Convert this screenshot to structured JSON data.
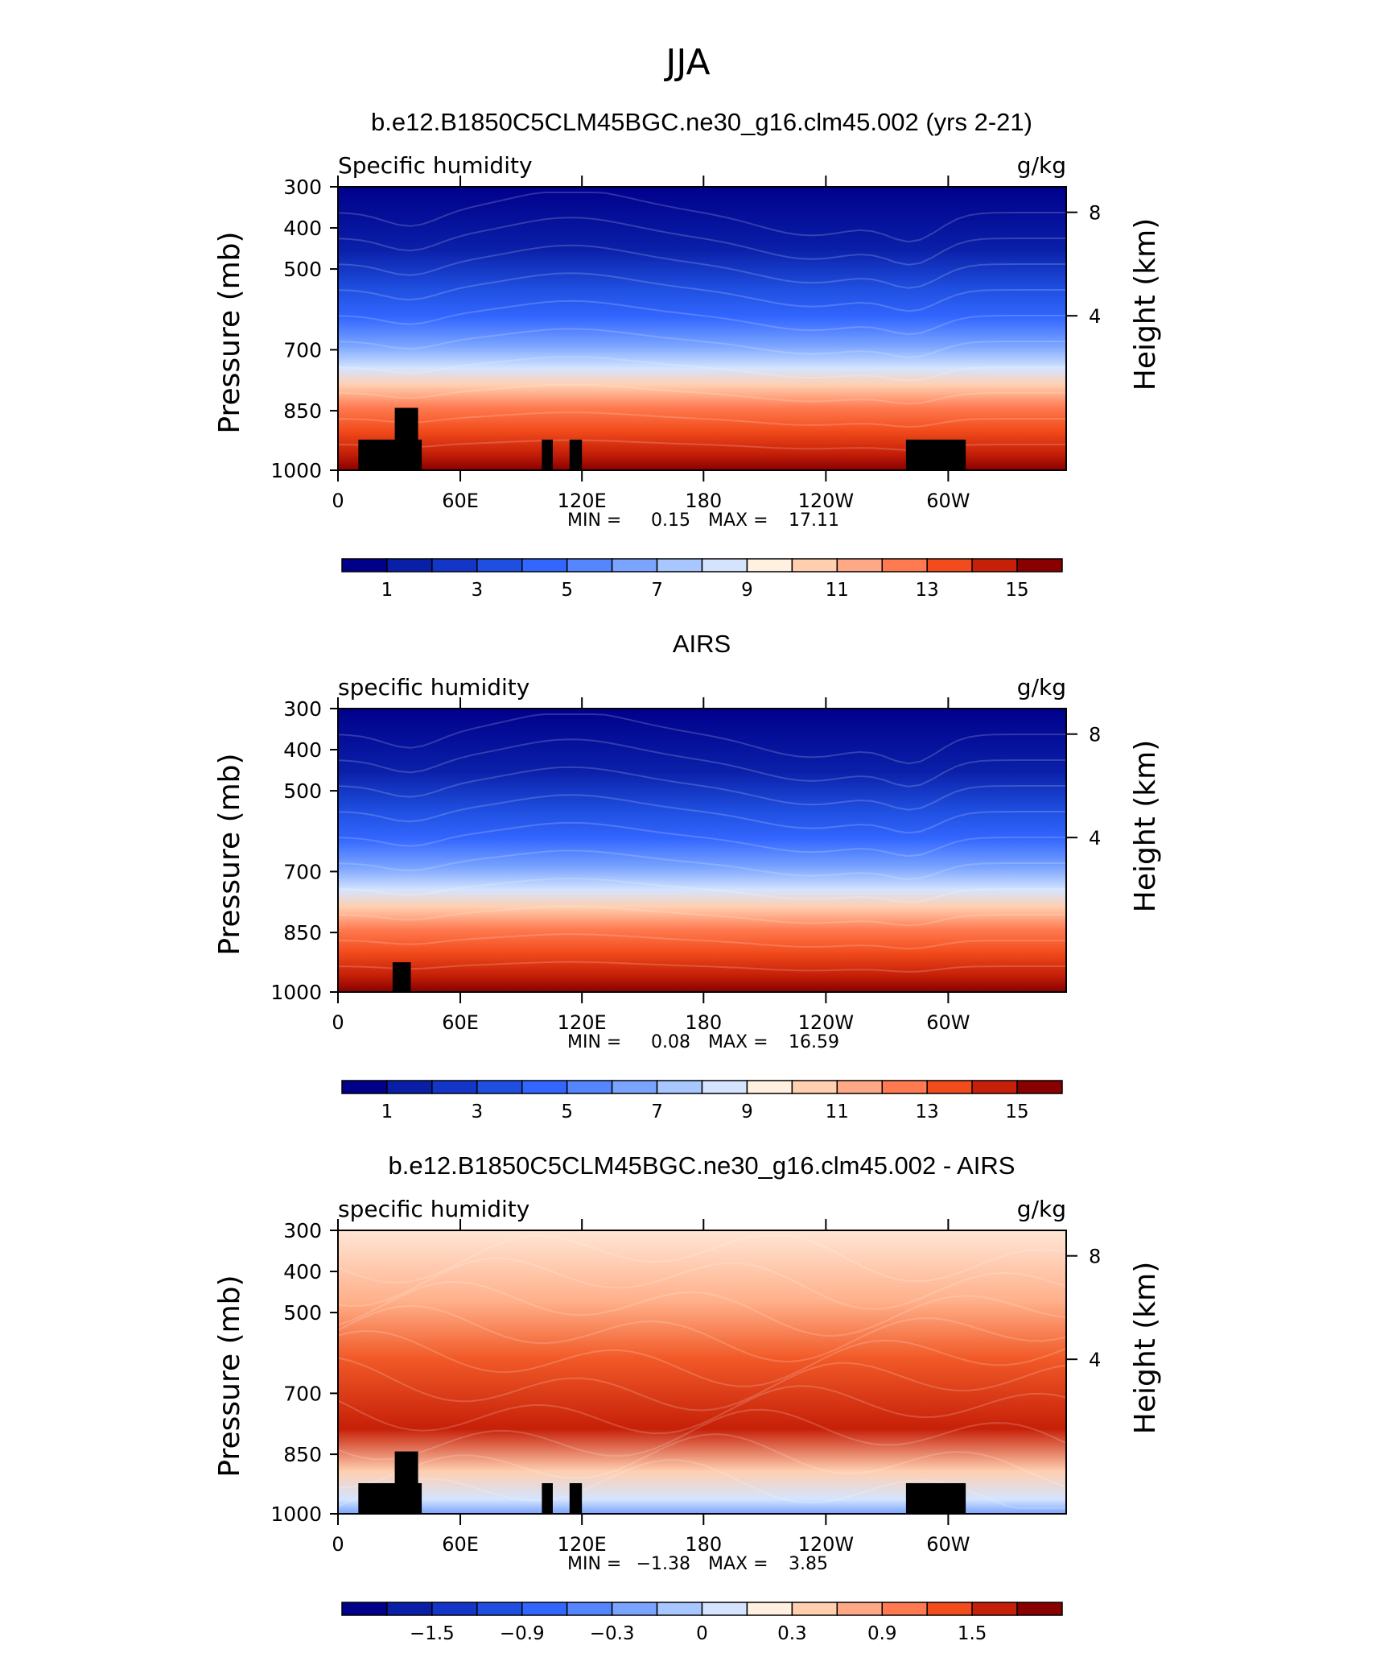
{
  "page": {
    "season_title": "JJA"
  },
  "colors": {
    "blue_to_red_16": [
      "#00008b",
      "#0a1fa8",
      "#1336c8",
      "#1f4fe0",
      "#3366ff",
      "#5585ff",
      "#7aa4ff",
      "#a8c6ff",
      "#d4e4ff",
      "#fff0e0",
      "#ffcfb0",
      "#ffa886",
      "#ff7a50",
      "#f24c1c",
      "#c62008",
      "#880000"
    ],
    "land": "#000000",
    "axis": "#000000"
  },
  "chart_data": [
    {
      "id": "model",
      "type": "heatmap",
      "title": "b.e12.B1850C5CLM45BGC.ne30_g16.clm45.002 (yrs 2-21)",
      "left_label": "Specific humidity",
      "right_label": "g/kg",
      "ylabel": "Pressure (mb)",
      "ylabel_right": "Height (km)",
      "yticks": [
        "300",
        "400",
        "500",
        "700",
        "850",
        "1000"
      ],
      "yticks_right": [
        "8",
        "4"
      ],
      "xticks": [
        "0",
        "60E",
        "120E",
        "180",
        "120W",
        "60W"
      ],
      "min_max": {
        "min_label": "MIN =",
        "min": "0.15",
        "max_label": "MAX =",
        "max": "17.11"
      },
      "colorbar_labels": [
        "1",
        "3",
        "5",
        "7",
        "9",
        "11",
        "13",
        "15"
      ],
      "value_range": [
        0.15,
        17.11
      ]
    },
    {
      "id": "obs",
      "type": "heatmap",
      "title": "AIRS",
      "left_label": "specific humidity",
      "right_label": "g/kg",
      "ylabel": "Pressure (mb)",
      "ylabel_right": "Height (km)",
      "yticks": [
        "300",
        "400",
        "500",
        "700",
        "850",
        "1000"
      ],
      "yticks_right": [
        "8",
        "4"
      ],
      "xticks": [
        "0",
        "60E",
        "120E",
        "180",
        "120W",
        "60W"
      ],
      "min_max": {
        "min_label": "MIN =",
        "min": "0.08",
        "max_label": "MAX =",
        "max": "16.59"
      },
      "colorbar_labels": [
        "1",
        "3",
        "5",
        "7",
        "9",
        "11",
        "13",
        "15"
      ],
      "value_range": [
        0.08,
        16.59
      ]
    },
    {
      "id": "diff",
      "type": "heatmap",
      "title": "b.e12.B1850C5CLM45BGC.ne30_g16.clm45.002 - AIRS",
      "left_label": "specific humidity",
      "right_label": "g/kg",
      "ylabel": "Pressure (mb)",
      "ylabel_right": "Height (km)",
      "yticks": [
        "300",
        "400",
        "500",
        "700",
        "850",
        "1000"
      ],
      "yticks_right": [
        "8",
        "4"
      ],
      "xticks": [
        "0",
        "60E",
        "120E",
        "180",
        "120W",
        "60W"
      ],
      "min_max": {
        "min_label": "MIN =",
        "min": "−1.38",
        "max_label": "MAX =",
        "max": "3.85"
      },
      "colorbar_labels": [
        "−1.5",
        "−0.9",
        "−0.3",
        "0",
        "0.3",
        "0.9",
        "1.5"
      ],
      "value_range": [
        -1.38,
        3.85
      ]
    }
  ]
}
